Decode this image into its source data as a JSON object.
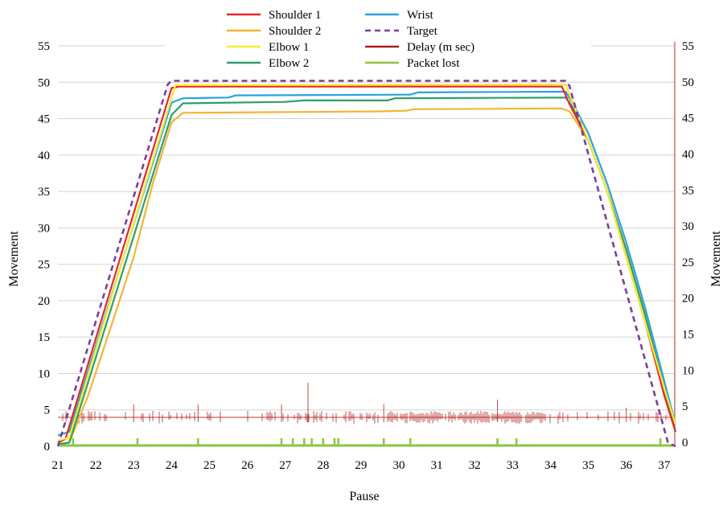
{
  "chart_data": {
    "type": "line",
    "xlabel": "Pause",
    "ylabel_left": "Movement",
    "ylabel_right": "Movement",
    "xlim": [
      21,
      37.3
    ],
    "ylim_left": [
      0,
      55
    ],
    "ylim_right": [
      -1,
      55
    ],
    "x_ticks": [
      21,
      22,
      23,
      24,
      25,
      26,
      27,
      28,
      29,
      30,
      31,
      32,
      33,
      34,
      35,
      36,
      37
    ],
    "y_ticks_left": [
      0,
      5,
      10,
      15,
      20,
      25,
      30,
      35,
      40,
      45,
      50,
      55
    ],
    "y_ticks_right": [
      0,
      5,
      10,
      15,
      20,
      25,
      30,
      35,
      40,
      45,
      50,
      55
    ],
    "grid": "horizontal",
    "legend_position": "top-center",
    "series": [
      {
        "name": "Shoulder 1",
        "color": "#e8262b",
        "axis": "left",
        "style": "solid",
        "points": [
          [
            21,
            0.5
          ],
          [
            21.2,
            1
          ],
          [
            24,
            49.2
          ],
          [
            24.2,
            49.4
          ],
          [
            34.3,
            49.4
          ],
          [
            34.5,
            47
          ],
          [
            35,
            42
          ],
          [
            35.5,
            35
          ],
          [
            36,
            26
          ],
          [
            36.5,
            17
          ],
          [
            37,
            7
          ],
          [
            37.3,
            2
          ]
        ]
      },
      {
        "name": "Wrist",
        "color": "#29a3e0",
        "axis": "left",
        "style": "solid",
        "points": [
          [
            21,
            1.5
          ],
          [
            21.3,
            2
          ],
          [
            24,
            47.2
          ],
          [
            24.3,
            47.8
          ],
          [
            25.5,
            47.9
          ],
          [
            25.7,
            48.2
          ],
          [
            30.3,
            48.3
          ],
          [
            30.5,
            48.6
          ],
          [
            34.4,
            48.7
          ],
          [
            34.6,
            47
          ],
          [
            35,
            43
          ],
          [
            35.5,
            36
          ],
          [
            36,
            28
          ],
          [
            36.5,
            19
          ],
          [
            37,
            9
          ],
          [
            37.3,
            3
          ]
        ]
      },
      {
        "name": "Shoulder 2",
        "color": "#f2b534",
        "axis": "left",
        "style": "solid",
        "points": [
          [
            21,
            0.3
          ],
          [
            21.3,
            0.5
          ],
          [
            21.8,
            7
          ],
          [
            22.5,
            18
          ],
          [
            23,
            26
          ],
          [
            23.5,
            36
          ],
          [
            24,
            44.5
          ],
          [
            24.3,
            45.8
          ],
          [
            27,
            45.9
          ],
          [
            29.5,
            46
          ],
          [
            30.2,
            46.1
          ],
          [
            30.4,
            46.3
          ],
          [
            34.3,
            46.4
          ],
          [
            34.5,
            46
          ],
          [
            35,
            42
          ],
          [
            35.5,
            35
          ],
          [
            36,
            27
          ],
          [
            36.5,
            18
          ],
          [
            37,
            8
          ],
          [
            37.3,
            3
          ]
        ]
      },
      {
        "name": "Target",
        "color": "#7b3f9c",
        "axis": "left",
        "style": "dashed",
        "points": [
          [
            21,
            0
          ],
          [
            23.9,
            49.7
          ],
          [
            24,
            50.2
          ],
          [
            34.4,
            50.2
          ],
          [
            34.5,
            49.5
          ],
          [
            37.1,
            0.5
          ],
          [
            37.3,
            0
          ]
        ]
      },
      {
        "name": "Elbow 1",
        "color": "#f7ec2a",
        "axis": "left",
        "style": "solid",
        "points": [
          [
            21,
            0.8
          ],
          [
            21.3,
            1.2
          ],
          [
            24.1,
            49.6
          ],
          [
            34.4,
            49.7
          ],
          [
            34.6,
            47
          ],
          [
            35,
            42
          ],
          [
            35.5,
            35
          ],
          [
            36,
            26
          ],
          [
            36.5,
            17
          ],
          [
            37,
            8
          ],
          [
            37.3,
            3
          ]
        ]
      },
      {
        "name": "Delay (m sec)",
        "color": "#b01c1c",
        "axis": "right",
        "style": "solid",
        "points": [
          [
            21,
            4
          ],
          [
            37.3,
            4
          ]
        ]
      },
      {
        "name": "Elbow 2",
        "color": "#2e9e6a",
        "axis": "left",
        "style": "solid",
        "points": [
          [
            21,
            0.3
          ],
          [
            21.3,
            0.5
          ],
          [
            24,
            45.5
          ],
          [
            24.3,
            47.1
          ],
          [
            27,
            47.3
          ],
          [
            27.5,
            47.5
          ],
          [
            29.7,
            47.5
          ],
          [
            29.9,
            47.8
          ],
          [
            34.4,
            47.9
          ],
          [
            34.6,
            46.5
          ],
          [
            35,
            42
          ],
          [
            35.5,
            35
          ],
          [
            36,
            27
          ],
          [
            36.5,
            18
          ],
          [
            37,
            8
          ],
          [
            37.3,
            2
          ]
        ]
      },
      {
        "name": "Packet lost",
        "color": "#8cc43f",
        "axis": "right",
        "style": "solid",
        "points": [
          [
            21,
            0
          ],
          [
            37.3,
            0
          ]
        ]
      }
    ]
  }
}
